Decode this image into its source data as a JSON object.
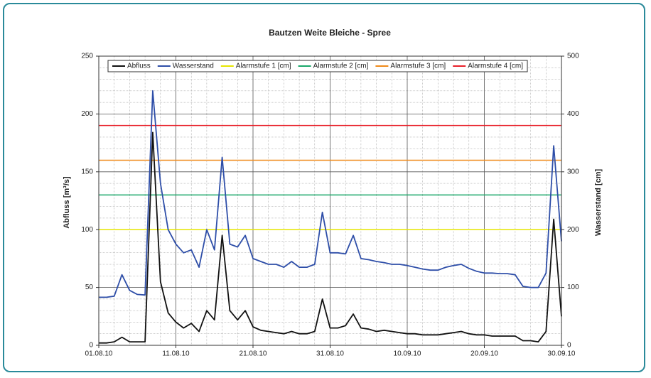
{
  "chart_data": {
    "type": "line",
    "title": "Bautzen Weite Bleiche - Spree",
    "y_label": "Abfluss [m³/s]",
    "y2_label": "Wasserstand [cm]",
    "x": [
      "2010-08-01",
      "2010-08-02",
      "2010-08-03",
      "2010-08-04",
      "2010-08-05",
      "2010-08-06",
      "2010-08-07",
      "2010-08-08",
      "2010-08-09",
      "2010-08-10",
      "2010-08-11",
      "2010-08-12",
      "2010-08-13",
      "2010-08-14",
      "2010-08-15",
      "2010-08-16",
      "2010-08-17",
      "2010-08-18",
      "2010-08-19",
      "2010-08-20",
      "2010-08-21",
      "2010-08-22",
      "2010-08-23",
      "2010-08-24",
      "2010-08-25",
      "2010-08-26",
      "2010-08-27",
      "2010-08-28",
      "2010-08-29",
      "2010-08-30",
      "2010-08-31",
      "2010-09-01",
      "2010-09-02",
      "2010-09-03",
      "2010-09-04",
      "2010-09-05",
      "2010-09-06",
      "2010-09-07",
      "2010-09-08",
      "2010-09-09",
      "2010-09-10",
      "2010-09-11",
      "2010-09-12",
      "2010-09-13",
      "2010-09-14",
      "2010-09-15",
      "2010-09-16",
      "2010-09-17",
      "2010-09-18",
      "2010-09-19",
      "2010-09-20",
      "2010-09-21",
      "2010-09-22",
      "2010-09-23",
      "2010-09-24",
      "2010-09-25",
      "2010-09-26",
      "2010-09-27",
      "2010-09-28",
      "2010-09-29",
      "2010-09-30"
    ],
    "series": [
      {
        "name": "Abfluss",
        "color": "#111111",
        "axis": "y",
        "values": [
          2,
          2,
          3,
          7,
          3,
          3,
          3,
          184,
          55,
          28,
          20,
          15,
          19,
          12,
          30,
          22,
          95,
          30,
          22,
          30,
          16,
          13,
          12,
          11,
          10,
          12,
          10,
          10,
          12,
          40,
          15,
          15,
          17,
          27,
          15,
          14,
          12,
          13,
          12,
          11,
          10,
          10,
          9,
          9,
          9,
          10,
          11,
          12,
          10,
          9,
          9,
          8,
          8,
          8,
          8,
          4,
          4,
          3,
          12,
          109,
          25
        ]
      },
      {
        "name": "Wasserstand",
        "color": "#2e4ea8",
        "axis": "y2",
        "values": [
          83,
          83,
          85,
          122,
          95,
          88,
          87,
          440,
          280,
          200,
          175,
          160,
          165,
          135,
          200,
          165,
          325,
          175,
          170,
          190,
          150,
          145,
          140,
          140,
          135,
          145,
          135,
          135,
          140,
          230,
          160,
          160,
          158,
          190,
          150,
          148,
          145,
          143,
          140,
          140,
          138,
          135,
          132,
          130,
          130,
          135,
          138,
          140,
          133,
          128,
          125,
          125,
          124,
          124,
          122,
          102,
          100,
          100,
          125,
          345,
          180
        ]
      }
    ],
    "thresholds": [
      {
        "name": "Alarmstufe 1 [cm]",
        "color": "#e6e600",
        "axis": "y2",
        "value": 200
      },
      {
        "name": "Alarmstufe 2 [cm]",
        "color": "#1aa86a",
        "axis": "y2",
        "value": 260
      },
      {
        "name": "Alarmstufe 3 [cm]",
        "color": "#f08a1a",
        "axis": "y2",
        "value": 320
      },
      {
        "name": "Alarmstufe 4 [cm]",
        "color": "#e8202a",
        "axis": "y2",
        "value": 380
      }
    ],
    "xlim": [
      "2010-08-01",
      "2010-09-30"
    ],
    "xticks": [
      {
        "value": "2010-08-01",
        "label": "01.08.10"
      },
      {
        "value": "2010-08-11",
        "label": "11.08.10"
      },
      {
        "value": "2010-08-21",
        "label": "21.08.10"
      },
      {
        "value": "2010-08-31",
        "label": "31.08.10"
      },
      {
        "value": "2010-09-10",
        "label": "10.09.10"
      },
      {
        "value": "2010-09-20",
        "label": "20.09.10"
      },
      {
        "value": "2010-09-30",
        "label": "30.09.10"
      }
    ],
    "ylim": [
      0,
      250
    ],
    "yticks": [
      0,
      50,
      100,
      150,
      200,
      250
    ],
    "y2lim": [
      0,
      500
    ],
    "y2ticks": [
      0,
      100,
      200,
      300,
      400,
      500
    ],
    "grid": true,
    "minor_grid": true,
    "legend": "top"
  }
}
